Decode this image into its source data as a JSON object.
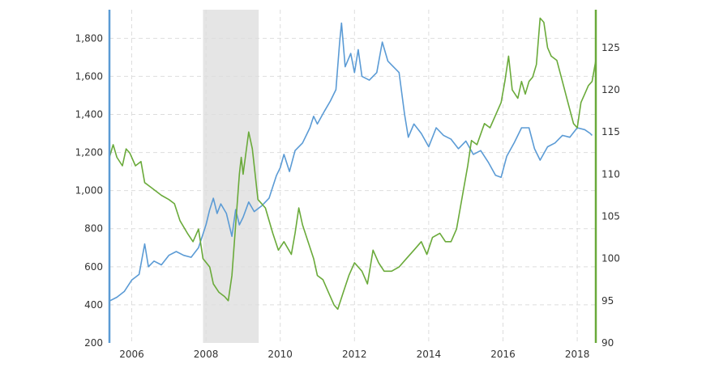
{
  "chart_data": {
    "type": "line",
    "title": "",
    "xlabel": "",
    "ylabel_left": "",
    "ylabel_right": "",
    "x_range": [
      2005.4,
      2018.5
    ],
    "x_ticks": [
      "2006",
      "2008",
      "2010",
      "2012",
      "2014",
      "2016",
      "2018"
    ],
    "y_left_range": [
      200,
      1950
    ],
    "y_left_ticks": [
      "200",
      "400",
      "600",
      "800",
      "1,000",
      "1,200",
      "1,400",
      "1,600",
      "1,800"
    ],
    "y_right_range": [
      90,
      129.5
    ],
    "y_right_ticks": [
      "90",
      "95",
      "100",
      "105",
      "110",
      "115",
      "120",
      "125"
    ],
    "grid": true,
    "recession_shading": [
      2007.92,
      2009.42
    ],
    "series": [
      {
        "axis": "left",
        "color": "#5b9bd5",
        "points": [
          [
            2005.4,
            420
          ],
          [
            2005.6,
            440
          ],
          [
            2005.8,
            470
          ],
          [
            2006.0,
            530
          ],
          [
            2006.2,
            560
          ],
          [
            2006.35,
            720
          ],
          [
            2006.45,
            600
          ],
          [
            2006.6,
            630
          ],
          [
            2006.8,
            610
          ],
          [
            2007.0,
            660
          ],
          [
            2007.2,
            680
          ],
          [
            2007.4,
            660
          ],
          [
            2007.6,
            650
          ],
          [
            2007.8,
            700
          ],
          [
            2008.0,
            820
          ],
          [
            2008.1,
            900
          ],
          [
            2008.2,
            960
          ],
          [
            2008.3,
            880
          ],
          [
            2008.4,
            930
          ],
          [
            2008.55,
            880
          ],
          [
            2008.7,
            760
          ],
          [
            2008.8,
            900
          ],
          [
            2008.9,
            820
          ],
          [
            2009.0,
            860
          ],
          [
            2009.15,
            940
          ],
          [
            2009.3,
            890
          ],
          [
            2009.5,
            920
          ],
          [
            2009.7,
            960
          ],
          [
            2009.9,
            1080
          ],
          [
            2010.0,
            1120
          ],
          [
            2010.1,
            1190
          ],
          [
            2010.25,
            1100
          ],
          [
            2010.4,
            1210
          ],
          [
            2010.6,
            1250
          ],
          [
            2010.8,
            1330
          ],
          [
            2010.9,
            1390
          ],
          [
            2011.0,
            1350
          ],
          [
            2011.2,
            1420
          ],
          [
            2011.35,
            1470
          ],
          [
            2011.5,
            1530
          ],
          [
            2011.6,
            1780
          ],
          [
            2011.65,
            1880
          ],
          [
            2011.75,
            1650
          ],
          [
            2011.9,
            1720
          ],
          [
            2012.0,
            1620
          ],
          [
            2012.1,
            1740
          ],
          [
            2012.2,
            1600
          ],
          [
            2012.4,
            1580
          ],
          [
            2012.6,
            1620
          ],
          [
            2012.75,
            1780
          ],
          [
            2012.9,
            1680
          ],
          [
            2013.0,
            1660
          ],
          [
            2013.2,
            1620
          ],
          [
            2013.35,
            1400
          ],
          [
            2013.45,
            1280
          ],
          [
            2013.6,
            1350
          ],
          [
            2013.8,
            1300
          ],
          [
            2014.0,
            1230
          ],
          [
            2014.2,
            1330
          ],
          [
            2014.4,
            1290
          ],
          [
            2014.6,
            1270
          ],
          [
            2014.8,
            1220
          ],
          [
            2015.0,
            1260
          ],
          [
            2015.2,
            1190
          ],
          [
            2015.4,
            1210
          ],
          [
            2015.6,
            1150
          ],
          [
            2015.8,
            1080
          ],
          [
            2015.95,
            1070
          ],
          [
            2016.1,
            1180
          ],
          [
            2016.3,
            1250
          ],
          [
            2016.5,
            1330
          ],
          [
            2016.7,
            1330
          ],
          [
            2016.85,
            1220
          ],
          [
            2017.0,
            1160
          ],
          [
            2017.2,
            1230
          ],
          [
            2017.4,
            1250
          ],
          [
            2017.6,
            1290
          ],
          [
            2017.8,
            1280
          ],
          [
            2018.0,
            1330
          ],
          [
            2018.2,
            1320
          ],
          [
            2018.35,
            1300
          ],
          [
            2018.4,
            1290
          ]
        ]
      },
      {
        "axis": "right",
        "color": "#6aaa3a",
        "points": [
          [
            2005.4,
            112
          ],
          [
            2005.5,
            113.5
          ],
          [
            2005.6,
            112
          ],
          [
            2005.75,
            111
          ],
          [
            2005.85,
            113
          ],
          [
            2005.95,
            112.5
          ],
          [
            2006.1,
            111
          ],
          [
            2006.25,
            111.5
          ],
          [
            2006.35,
            109
          ],
          [
            2006.5,
            108.5
          ],
          [
            2006.65,
            108
          ],
          [
            2006.8,
            107.5
          ],
          [
            2007.0,
            107
          ],
          [
            2007.15,
            106.5
          ],
          [
            2007.3,
            104.5
          ],
          [
            2007.5,
            103
          ],
          [
            2007.65,
            102
          ],
          [
            2007.8,
            103.5
          ],
          [
            2007.92,
            100
          ],
          [
            2008.1,
            99
          ],
          [
            2008.2,
            97
          ],
          [
            2008.35,
            96
          ],
          [
            2008.5,
            95.5
          ],
          [
            2008.6,
            95
          ],
          [
            2008.7,
            98
          ],
          [
            2008.8,
            104
          ],
          [
            2008.9,
            110
          ],
          [
            2008.95,
            112
          ],
          [
            2009.0,
            110
          ],
          [
            2009.15,
            115
          ],
          [
            2009.25,
            113
          ],
          [
            2009.4,
            107
          ],
          [
            2009.6,
            106
          ],
          [
            2009.8,
            103
          ],
          [
            2009.95,
            101
          ],
          [
            2010.1,
            102
          ],
          [
            2010.3,
            100.5
          ],
          [
            2010.4,
            103
          ],
          [
            2010.5,
            106
          ],
          [
            2010.6,
            104
          ],
          [
            2010.75,
            102
          ],
          [
            2010.9,
            100
          ],
          [
            2011.0,
            98
          ],
          [
            2011.15,
            97.5
          ],
          [
            2011.3,
            96
          ],
          [
            2011.45,
            94.5
          ],
          [
            2011.55,
            94
          ],
          [
            2011.7,
            96
          ],
          [
            2011.85,
            98
          ],
          [
            2012.0,
            99.5
          ],
          [
            2012.2,
            98.5
          ],
          [
            2012.35,
            97
          ],
          [
            2012.5,
            101
          ],
          [
            2012.65,
            99.5
          ],
          [
            2012.8,
            98.5
          ],
          [
            2013.0,
            98.5
          ],
          [
            2013.2,
            99
          ],
          [
            2013.4,
            100
          ],
          [
            2013.6,
            101
          ],
          [
            2013.8,
            102
          ],
          [
            2013.95,
            100.5
          ],
          [
            2014.1,
            102.5
          ],
          [
            2014.3,
            103
          ],
          [
            2014.45,
            102
          ],
          [
            2014.6,
            102
          ],
          [
            2014.75,
            103.5
          ],
          [
            2014.85,
            106
          ],
          [
            2014.95,
            108.5
          ],
          [
            2015.05,
            111
          ],
          [
            2015.15,
            114
          ],
          [
            2015.3,
            113.5
          ],
          [
            2015.5,
            116
          ],
          [
            2015.65,
            115.5
          ],
          [
            2015.8,
            117
          ],
          [
            2015.95,
            118.5
          ],
          [
            2016.05,
            121
          ],
          [
            2016.15,
            124
          ],
          [
            2016.25,
            120
          ],
          [
            2016.4,
            119
          ],
          [
            2016.5,
            121
          ],
          [
            2016.6,
            119.5
          ],
          [
            2016.7,
            121
          ],
          [
            2016.8,
            121.5
          ],
          [
            2016.9,
            123
          ],
          [
            2017.0,
            128.5
          ],
          [
            2017.1,
            128
          ],
          [
            2017.2,
            125
          ],
          [
            2017.3,
            124
          ],
          [
            2017.45,
            123.5
          ],
          [
            2017.6,
            121
          ],
          [
            2017.75,
            118.5
          ],
          [
            2017.9,
            116
          ],
          [
            2018.0,
            115.5
          ],
          [
            2018.1,
            118.5
          ],
          [
            2018.2,
            119.5
          ],
          [
            2018.3,
            120.5
          ],
          [
            2018.4,
            121
          ],
          [
            2018.5,
            123.5
          ]
        ]
      }
    ]
  }
}
